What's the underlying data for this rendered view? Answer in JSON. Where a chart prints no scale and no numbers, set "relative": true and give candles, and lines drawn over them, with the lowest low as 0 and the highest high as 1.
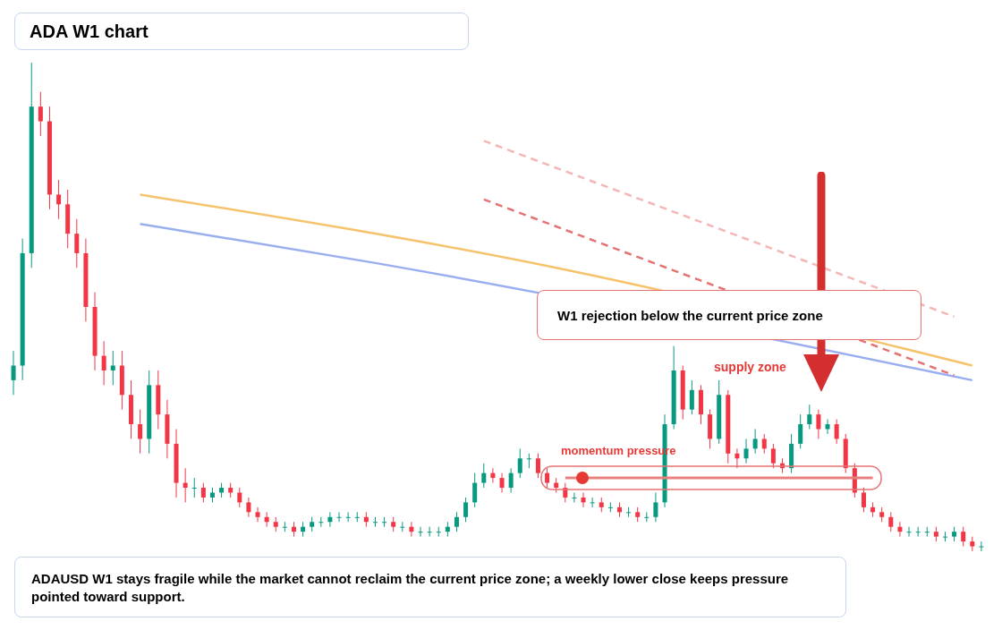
{
  "chart_data": {
    "type": "candlestick",
    "title": "ADA W1 chart",
    "relative": true,
    "categories": [
      null,
      null,
      null,
      null,
      null,
      null,
      null,
      null,
      null,
      null,
      null,
      null,
      null,
      null,
      null,
      null,
      null,
      null,
      null,
      null,
      null,
      null,
      null,
      null,
      null,
      null,
      null,
      null,
      null,
      null,
      null,
      null,
      null,
      null,
      null,
      null,
      null,
      null,
      null,
      null,
      null,
      null,
      null,
      null,
      null,
      null,
      null,
      null,
      null,
      null,
      null,
      null,
      null,
      null,
      null,
      null,
      null,
      null,
      null,
      null,
      null,
      null,
      null,
      null,
      null,
      null,
      null,
      null,
      null,
      null,
      null,
      null,
      null,
      null,
      null,
      null,
      null,
      null,
      null,
      null,
      null,
      null,
      null,
      null,
      null,
      null,
      null,
      null,
      null,
      null,
      null,
      null,
      null,
      null,
      null,
      null,
      null,
      null,
      null,
      null,
      null,
      null,
      null,
      null,
      null,
      null,
      null,
      null
    ],
    "ohlc": [
      [
        0.35,
        0.41,
        0.32,
        0.38
      ],
      [
        0.38,
        0.64,
        0.35,
        0.61
      ],
      [
        0.61,
        1.0,
        0.58,
        0.91
      ],
      [
        0.91,
        0.94,
        0.85,
        0.88
      ],
      [
        0.88,
        0.91,
        0.7,
        0.73
      ],
      [
        0.73,
        0.76,
        0.68,
        0.71
      ],
      [
        0.71,
        0.74,
        0.62,
        0.65
      ],
      [
        0.65,
        0.68,
        0.58,
        0.61
      ],
      [
        0.61,
        0.64,
        0.47,
        0.5
      ],
      [
        0.5,
        0.53,
        0.37,
        0.4
      ],
      [
        0.4,
        0.43,
        0.34,
        0.37
      ],
      [
        0.37,
        0.41,
        0.34,
        0.38
      ],
      [
        0.38,
        0.41,
        0.29,
        0.32
      ],
      [
        0.32,
        0.35,
        0.23,
        0.26
      ],
      [
        0.26,
        0.29,
        0.2,
        0.23
      ],
      [
        0.23,
        0.37,
        0.2,
        0.34
      ],
      [
        0.34,
        0.37,
        0.25,
        0.28
      ],
      [
        0.28,
        0.31,
        0.19,
        0.22
      ],
      [
        0.22,
        0.25,
        0.11,
        0.14
      ],
      [
        0.14,
        0.17,
        0.1,
        0.13
      ],
      [
        0.13,
        0.15,
        0.11,
        0.13
      ],
      [
        0.13,
        0.14,
        0.1,
        0.11
      ],
      [
        0.11,
        0.13,
        0.1,
        0.12
      ],
      [
        0.12,
        0.14,
        0.11,
        0.13
      ],
      [
        0.13,
        0.14,
        0.11,
        0.12
      ],
      [
        0.12,
        0.13,
        0.09,
        0.1
      ],
      [
        0.1,
        0.11,
        0.07,
        0.08
      ],
      [
        0.08,
        0.09,
        0.06,
        0.07
      ],
      [
        0.07,
        0.08,
        0.05,
        0.06
      ],
      [
        0.06,
        0.07,
        0.04,
        0.05
      ],
      [
        0.05,
        0.06,
        0.04,
        0.05
      ],
      [
        0.05,
        0.06,
        0.03,
        0.04
      ],
      [
        0.04,
        0.06,
        0.03,
        0.05
      ],
      [
        0.05,
        0.07,
        0.04,
        0.06
      ],
      [
        0.06,
        0.07,
        0.05,
        0.06
      ],
      [
        0.06,
        0.08,
        0.05,
        0.07
      ],
      [
        0.07,
        0.08,
        0.06,
        0.07
      ],
      [
        0.07,
        0.08,
        0.06,
        0.07
      ],
      [
        0.07,
        0.08,
        0.06,
        0.07
      ],
      [
        0.07,
        0.08,
        0.05,
        0.06
      ],
      [
        0.06,
        0.07,
        0.05,
        0.06
      ],
      [
        0.06,
        0.07,
        0.05,
        0.06
      ],
      [
        0.06,
        0.07,
        0.04,
        0.05
      ],
      [
        0.05,
        0.06,
        0.04,
        0.05
      ],
      [
        0.05,
        0.06,
        0.03,
        0.04
      ],
      [
        0.04,
        0.05,
        0.03,
        0.04
      ],
      [
        0.04,
        0.05,
        0.03,
        0.04
      ],
      [
        0.04,
        0.05,
        0.03,
        0.04
      ],
      [
        0.04,
        0.06,
        0.03,
        0.05
      ],
      [
        0.05,
        0.08,
        0.04,
        0.07
      ],
      [
        0.07,
        0.11,
        0.06,
        0.1
      ],
      [
        0.1,
        0.16,
        0.09,
        0.14
      ],
      [
        0.14,
        0.18,
        0.13,
        0.16
      ],
      [
        0.16,
        0.17,
        0.14,
        0.15
      ],
      [
        0.15,
        0.16,
        0.12,
        0.13
      ],
      [
        0.13,
        0.17,
        0.12,
        0.16
      ],
      [
        0.16,
        0.21,
        0.15,
        0.19
      ],
      [
        0.19,
        0.2,
        0.17,
        0.19
      ],
      [
        0.19,
        0.2,
        0.15,
        0.16
      ],
      [
        0.16,
        0.17,
        0.13,
        0.14
      ],
      [
        0.14,
        0.15,
        0.12,
        0.13
      ],
      [
        0.13,
        0.14,
        0.1,
        0.11
      ],
      [
        0.11,
        0.12,
        0.1,
        0.11
      ],
      [
        0.11,
        0.12,
        0.09,
        0.1
      ],
      [
        0.1,
        0.11,
        0.09,
        0.1
      ],
      [
        0.1,
        0.11,
        0.08,
        0.09
      ],
      [
        0.09,
        0.1,
        0.08,
        0.09
      ],
      [
        0.09,
        0.1,
        0.07,
        0.08
      ],
      [
        0.08,
        0.09,
        0.07,
        0.08
      ],
      [
        0.08,
        0.09,
        0.06,
        0.07
      ],
      [
        0.07,
        0.08,
        0.06,
        0.07
      ],
      [
        0.07,
        0.12,
        0.06,
        0.1
      ],
      [
        0.1,
        0.28,
        0.09,
        0.26
      ],
      [
        0.26,
        0.42,
        0.25,
        0.37
      ],
      [
        0.37,
        0.38,
        0.27,
        0.29
      ],
      [
        0.29,
        0.35,
        0.28,
        0.33
      ],
      [
        0.33,
        0.34,
        0.26,
        0.28
      ],
      [
        0.28,
        0.29,
        0.21,
        0.23
      ],
      [
        0.23,
        0.35,
        0.22,
        0.32
      ],
      [
        0.32,
        0.33,
        0.18,
        0.2
      ],
      [
        0.2,
        0.21,
        0.17,
        0.19
      ],
      [
        0.19,
        0.23,
        0.18,
        0.21
      ],
      [
        0.21,
        0.25,
        0.2,
        0.23
      ],
      [
        0.23,
        0.24,
        0.2,
        0.21
      ],
      [
        0.21,
        0.22,
        0.17,
        0.18
      ],
      [
        0.18,
        0.19,
        0.16,
        0.17
      ],
      [
        0.17,
        0.24,
        0.16,
        0.22
      ],
      [
        0.22,
        0.28,
        0.21,
        0.26
      ],
      [
        0.26,
        0.3,
        0.25,
        0.28
      ],
      [
        0.28,
        0.29,
        0.23,
        0.25
      ],
      [
        0.25,
        0.27,
        0.24,
        0.26
      ],
      [
        0.26,
        0.27,
        0.22,
        0.23
      ],
      [
        0.23,
        0.24,
        0.16,
        0.17
      ],
      [
        0.17,
        0.18,
        0.11,
        0.12
      ],
      [
        0.12,
        0.13,
        0.08,
        0.09
      ],
      [
        0.09,
        0.1,
        0.07,
        0.08
      ],
      [
        0.08,
        0.09,
        0.06,
        0.07
      ],
      [
        0.07,
        0.08,
        0.04,
        0.05
      ],
      [
        0.05,
        0.06,
        0.03,
        0.04
      ],
      [
        0.04,
        0.05,
        0.03,
        0.04
      ],
      [
        0.04,
        0.05,
        0.03,
        0.04
      ],
      [
        0.04,
        0.05,
        0.03,
        0.04
      ],
      [
        0.04,
        0.05,
        0.02,
        0.03
      ],
      [
        0.03,
        0.04,
        0.02,
        0.03
      ],
      [
        0.03,
        0.05,
        0.02,
        0.04
      ],
      [
        0.04,
        0.05,
        0.01,
        0.02
      ],
      [
        0.02,
        0.03,
        0,
        0.01
      ],
      [
        0.01,
        0.02,
        0,
        0.01
      ]
    ],
    "series": [
      {
        "type": "line",
        "color": "#f6c26b",
        "line_style": "solid",
        "values": [
          null,
          null,
          null,
          null,
          null,
          null,
          null,
          null,
          null,
          null,
          null,
          null,
          null,
          null,
          0.73,
          null,
          null,
          null,
          null,
          null,
          null,
          null,
          null,
          null,
          null,
          null,
          null,
          null,
          null,
          null,
          null,
          null,
          null,
          null,
          null,
          null,
          null,
          null,
          null,
          null,
          null,
          null,
          null,
          null,
          null,
          null,
          null,
          null,
          null,
          null,
          null,
          null,
          null,
          null,
          null,
          null,
          null,
          null,
          null,
          null,
          0.58,
          null,
          null,
          null,
          null,
          null,
          null,
          null,
          null,
          null,
          null,
          null,
          null,
          null,
          null,
          null,
          null,
          null,
          null,
          null,
          null,
          null,
          null,
          null,
          null,
          null,
          null,
          null,
          null,
          null,
          null,
          null,
          null,
          null,
          null,
          null,
          null,
          null,
          null,
          null,
          null,
          null,
          null,
          null,
          null,
          null,
          0.38,
          null
        ]
      },
      {
        "type": "line",
        "color": "#98aef0",
        "line_style": "solid",
        "values": [
          null,
          null,
          null,
          null,
          null,
          null,
          null,
          null,
          null,
          null,
          null,
          null,
          null,
          null,
          0.67,
          null,
          null,
          null,
          null,
          null,
          null,
          null,
          null,
          null,
          null,
          null,
          null,
          null,
          null,
          null,
          null,
          null,
          null,
          null,
          null,
          null,
          null,
          null,
          null,
          null,
          0.59,
          null,
          null,
          null,
          null,
          null,
          null,
          null,
          null,
          null,
          null,
          null,
          null,
          null,
          null,
          null,
          null,
          null,
          null,
          null,
          null,
          null,
          null,
          null,
          null,
          null,
          null,
          null,
          null,
          null,
          null,
          null,
          null,
          null,
          null,
          null,
          null,
          null,
          null,
          null,
          null,
          null,
          null,
          null,
          null,
          null,
          null,
          null,
          null,
          null,
          null,
          null,
          null,
          null,
          null,
          null,
          null,
          null,
          null,
          null,
          null,
          null,
          null,
          null,
          null,
          null,
          0.35,
          null
        ]
      },
      {
        "type": "line",
        "color": "#e57373",
        "line_style": "dashed",
        "values": [
          null,
          null,
          null,
          null,
          null,
          null,
          null,
          null,
          null,
          null,
          null,
          null,
          null,
          null,
          null,
          null,
          null,
          null,
          null,
          null,
          null,
          null,
          null,
          null,
          null,
          null,
          null,
          null,
          null,
          null,
          null,
          null,
          null,
          null,
          null,
          null,
          null,
          null,
          null,
          null,
          null,
          null,
          null,
          null,
          null,
          null,
          null,
          null,
          null,
          null,
          null,
          null,
          0.72,
          null,
          null,
          null,
          null,
          null,
          null,
          null,
          null,
          null,
          null,
          null,
          null,
          null,
          null,
          null,
          null,
          null,
          null,
          null,
          null,
          null,
          null,
          null,
          null,
          null,
          null,
          null,
          null,
          null,
          null,
          null,
          null,
          null,
          null,
          null,
          null,
          null,
          null,
          null,
          null,
          null,
          null,
          null,
          null,
          null,
          null,
          null,
          null,
          null,
          null,
          null,
          0.36,
          null,
          null,
          null
        ]
      },
      {
        "type": "line",
        "color": "#f4b6b6",
        "line_style": "dashed",
        "values": [
          null,
          null,
          null,
          null,
          null,
          null,
          null,
          null,
          null,
          null,
          null,
          null,
          null,
          null,
          null,
          null,
          null,
          null,
          null,
          null,
          null,
          null,
          null,
          null,
          null,
          null,
          null,
          null,
          null,
          null,
          null,
          null,
          null,
          null,
          null,
          null,
          null,
          null,
          null,
          null,
          null,
          null,
          null,
          null,
          null,
          null,
          null,
          null,
          null,
          null,
          null,
          null,
          0.84,
          null,
          null,
          null,
          null,
          null,
          null,
          null,
          null,
          null,
          null,
          null,
          null,
          null,
          null,
          null,
          null,
          null,
          null,
          null,
          null,
          null,
          null,
          null,
          null,
          null,
          null,
          null,
          null,
          null,
          null,
          null,
          null,
          null,
          null,
          null,
          null,
          null,
          null,
          null,
          null,
          null,
          null,
          null,
          null,
          null,
          null,
          null,
          null,
          null,
          null,
          null,
          0.48,
          null,
          null,
          null
        ]
      },
      {
        "type": "line",
        "name": "momentum pressure",
        "color": "#e88080",
        "line_style": "solid",
        "values": [
          null,
          null,
          null,
          null,
          null,
          null,
          null,
          null,
          null,
          null,
          null,
          null,
          null,
          null,
          null,
          null,
          null,
          null,
          null,
          null,
          null,
          null,
          null,
          null,
          null,
          null,
          null,
          null,
          null,
          null,
          null,
          null,
          null,
          null,
          null,
          null,
          null,
          null,
          null,
          null,
          null,
          null,
          null,
          null,
          null,
          null,
          null,
          null,
          null,
          null,
          null,
          null,
          null,
          null,
          null,
          null,
          null,
          null,
          null,
          null,
          null,
          0.15,
          null,
          null,
          null,
          null,
          null,
          null,
          null,
          null,
          null,
          null,
          null,
          null,
          null,
          null,
          null,
          null,
          null,
          null,
          null,
          null,
          null,
          null,
          null,
          null,
          null,
          null,
          null,
          null,
          null,
          null,
          null,
          null,
          null,
          0.15,
          null,
          null,
          null,
          null,
          null,
          null,
          null,
          null,
          null,
          null,
          null,
          null
        ]
      }
    ],
    "annotations": [
      "W1 rejection below the current price zone",
      "supply zone",
      "ADAUSD W1 stays fragile while the market cannot reclaim the current price zone; a weekly lower close keeps pressure pointed toward support."
    ]
  }
}
